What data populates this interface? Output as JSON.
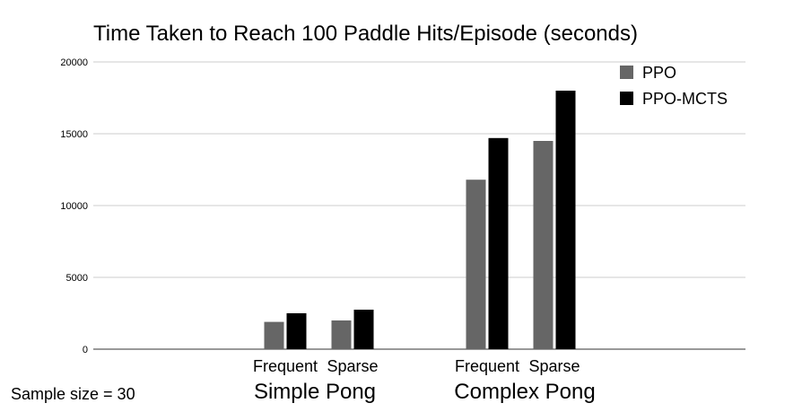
{
  "chart_data": {
    "type": "bar",
    "title": "Time Taken to Reach 100 Paddle Hits/Episode (seconds)",
    "xlabel": "",
    "ylabel": "",
    "ylim": [
      0,
      20000
    ],
    "yticks": [
      0,
      5000,
      10000,
      15000,
      20000
    ],
    "grid": true,
    "legend_position": "top-right",
    "groups": [
      {
        "label": "Simple Pong",
        "categories": [
          "Frequent",
          "Sparse"
        ]
      },
      {
        "label": "Complex Pong",
        "categories": [
          "Frequent",
          "Sparse"
        ]
      }
    ],
    "series": [
      {
        "name": "PPO",
        "color": "#666666",
        "values": [
          1900,
          2000,
          11800,
          14500
        ]
      },
      {
        "name": "PPO-MCTS",
        "color": "#000000",
        "values": [
          2500,
          2750,
          14700,
          18000
        ]
      }
    ]
  },
  "footnote": "Sample size = 30"
}
